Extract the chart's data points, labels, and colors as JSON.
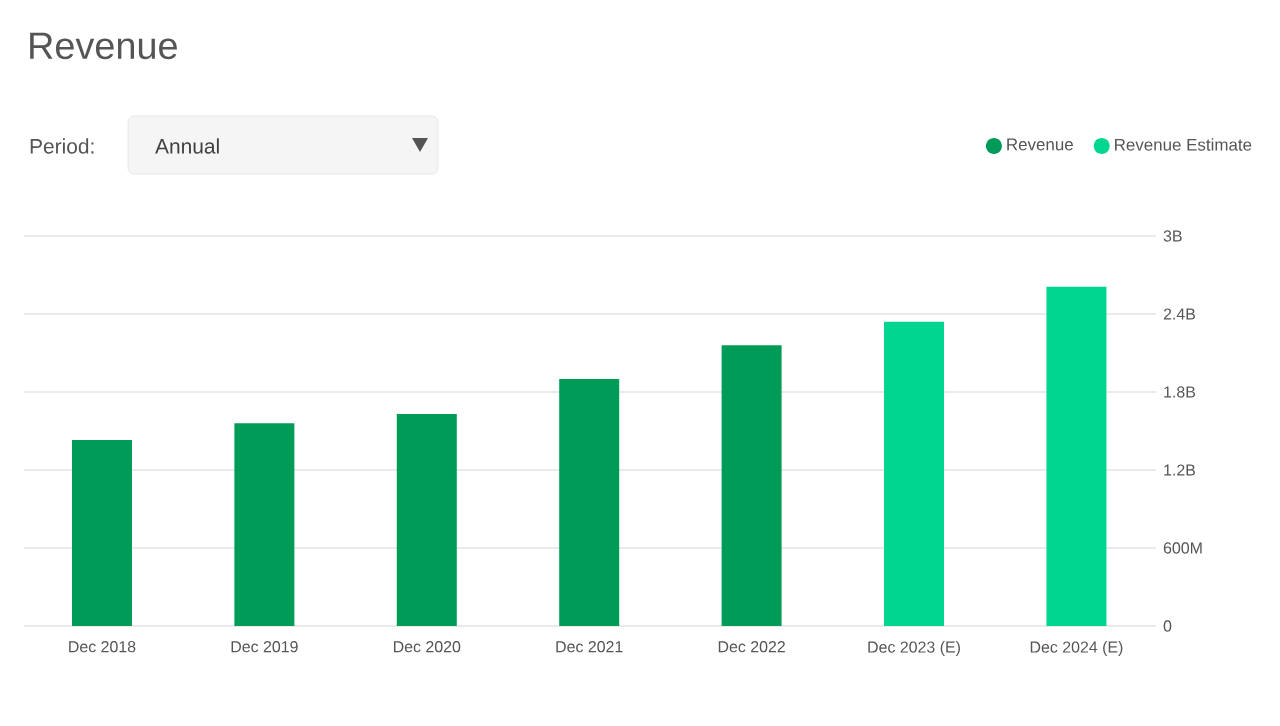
{
  "chart_data": {
    "type": "bar",
    "title": "Revenue",
    "categories": [
      "Dec 2018",
      "Dec 2019",
      "Dec 2020",
      "Dec 2021",
      "Dec 2022",
      "Dec 2023 (E)",
      "Dec 2024 (E)"
    ],
    "series": [
      {
        "name": "Revenue",
        "color": "#009b57",
        "values": [
          1430000000,
          1560000000,
          1630000000,
          1900000000,
          2160000000,
          null,
          null
        ]
      },
      {
        "name": "Revenue Estimate",
        "color": "#00d68f",
        "values": [
          null,
          null,
          null,
          null,
          null,
          2340000000,
          2610000000
        ]
      }
    ],
    "ylim": [
      0,
      3000000000
    ],
    "yticks": [
      0,
      {
        "value": 600000000,
        "label": "600M"
      },
      {
        "value": 1200000000,
        "label": "1.2B"
      },
      {
        "value": 1800000000,
        "label": "1.8B"
      },
      {
        "value": 2400000000,
        "label": "2.4B"
      },
      {
        "value": 3000000000,
        "label": "3B"
      }
    ],
    "grid": "y",
    "legend": "top right",
    "annotations": [
      "Period:",
      "Annual"
    ]
  }
}
